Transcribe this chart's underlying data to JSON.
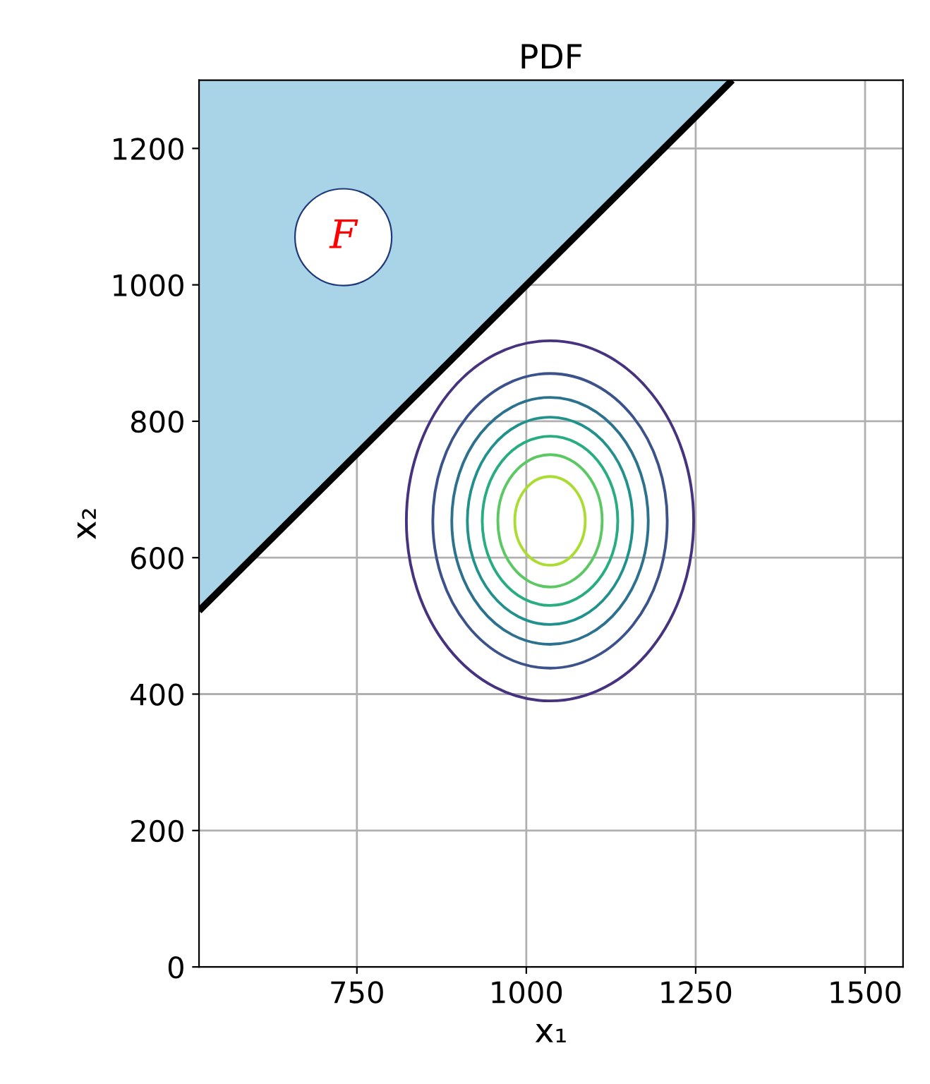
{
  "chart_data": {
    "type": "line",
    "title": "PDF",
    "xlabel": "x₁",
    "ylabel": "x₂",
    "xlim": [
      517,
      1556
    ],
    "ylim": [
      0,
      1300
    ],
    "xticks": [
      750,
      1000,
      1250,
      1500
    ],
    "yticks": [
      0,
      200,
      400,
      600,
      800,
      1000,
      1200
    ],
    "grid": true,
    "line_style": "solid",
    "marker": "none",
    "annotations": [
      "F"
    ],
    "series": [
      {
        "color": "#000000",
        "x": [
          517,
          1304
        ],
        "values": [
          522,
          1300
        ],
        "lower": [
          522,
          1300
        ],
        "upper": [
          1300,
          1300
        ]
      }
    ]
  }
}
